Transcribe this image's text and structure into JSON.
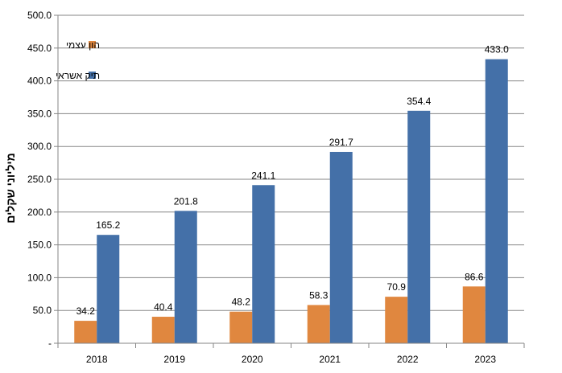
{
  "chart_data": {
    "type": "bar",
    "title": "",
    "xlabel": "",
    "ylabel": "מיליוני שקלים",
    "categories": [
      "2018",
      "2019",
      "2020",
      "2021",
      "2022",
      "2023"
    ],
    "ylim": [
      0,
      500
    ],
    "yticks": [
      "-",
      "50.0",
      "100.0",
      "150.0",
      "200.0",
      "250.0",
      "300.0",
      "350.0",
      "400.0",
      "450.0",
      "500.0"
    ],
    "grid": true,
    "legend_position": "top-left",
    "series": [
      {
        "name": "הון עצמי",
        "color": "#E0873F",
        "values": [
          34.2,
          40.4,
          48.2,
          58.3,
          70.9,
          86.6
        ],
        "labels": [
          "34.2",
          "40.4",
          "48.2",
          "58.3",
          "70.9",
          "86.6"
        ]
      },
      {
        "name": "תיק אשראי",
        "color": "#4470A8",
        "values": [
          165.2,
          201.8,
          241.1,
          291.7,
          354.4,
          433.0
        ],
        "labels": [
          "165.2",
          "201.8",
          "241.1",
          "291.7",
          "354.4",
          "433.0"
        ]
      }
    ]
  }
}
